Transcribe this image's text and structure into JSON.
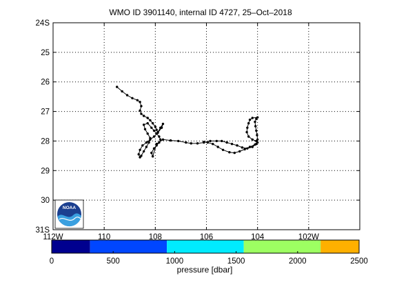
{
  "chart_data": {
    "type": "scatter",
    "title": "WMO ID 3901140, internal ID 4727, 25–Oct–2018",
    "xlim": [
      -112,
      -100
    ],
    "ylim": [
      -31,
      -24
    ],
    "grid": true,
    "x_tick_labels": [
      {
        "value": -112,
        "label": "112W"
      },
      {
        "value": -110,
        "label": "110"
      },
      {
        "value": -108,
        "label": "108"
      },
      {
        "value": -106,
        "label": "106"
      },
      {
        "value": -104,
        "label": "104"
      },
      {
        "value": -102,
        "label": "102W"
      }
    ],
    "y_tick_labels": [
      {
        "value": -24,
        "label": "24S"
      },
      {
        "value": -25,
        "label": "25"
      },
      {
        "value": -26,
        "label": "26"
      },
      {
        "value": -27,
        "label": "27"
      },
      {
        "value": -28,
        "label": "28"
      },
      {
        "value": -29,
        "label": "29"
      },
      {
        "value": -30,
        "label": "30"
      },
      {
        "value": -31,
        "label": "31S"
      }
    ],
    "series": [
      {
        "lon": [
          -109.5,
          -109.3,
          -109.1,
          -108.9,
          -108.7,
          -108.6,
          -108.55,
          -108.6,
          -108.55,
          -108.45,
          -108.3,
          -108.2,
          -108.1,
          -108.0,
          -107.95,
          -107.9,
          -107.8,
          -107.7,
          -107.75,
          -107.9,
          -108.05,
          -108.2,
          -108.35,
          -108.5,
          -108.6,
          -108.65,
          -108.6,
          -108.55,
          -108.45,
          -108.35,
          -108.25,
          -108.2,
          -108.3,
          -108.4,
          -108.45,
          -108.3,
          -108.15,
          -108.05,
          -107.95,
          -107.85,
          -107.8,
          -107.85,
          -107.95,
          -108.05,
          -108.15,
          -108.1,
          -107.95,
          -107.7,
          -107.4,
          -107.1,
          -106.8,
          -106.6,
          -106.35,
          -106.1,
          -105.85,
          -105.6,
          -105.4,
          -105.2,
          -105.0,
          -104.8,
          -104.6,
          -104.4,
          -104.2,
          -104.05,
          -104.0,
          -104.02,
          -104.05,
          -104.08,
          -104.1,
          -104.05,
          -104.0,
          -104.2,
          -104.3,
          -104.35,
          -104.4,
          -104.42,
          -104.35,
          -104.2,
          -104.05,
          -104.0,
          -104.1,
          -104.3,
          -104.5,
          -104.7,
          -104.9,
          -105.1,
          -105.35,
          -105.55,
          -105.75,
          -105.95,
          -106.1
        ],
        "lat": [
          -26.17,
          -26.32,
          -26.45,
          -26.55,
          -26.62,
          -26.68,
          -26.82,
          -26.97,
          -27.08,
          -27.15,
          -27.22,
          -27.3,
          -27.4,
          -27.52,
          -27.62,
          -27.7,
          -27.55,
          -27.42,
          -27.55,
          -27.72,
          -27.85,
          -27.95,
          -28.05,
          -28.15,
          -28.3,
          -28.45,
          -28.55,
          -28.5,
          -28.35,
          -28.2,
          -28.05,
          -27.9,
          -27.75,
          -27.6,
          -27.45,
          -27.4,
          -27.55,
          -27.65,
          -27.75,
          -27.85,
          -27.95,
          -28.05,
          -28.15,
          -28.25,
          -28.4,
          -28.52,
          -28.1,
          -27.95,
          -27.98,
          -28.0,
          -28.05,
          -28.08,
          -28.08,
          -28.05,
          -28.0,
          -28.0,
          -28.0,
          -28.05,
          -28.1,
          -28.15,
          -28.22,
          -28.25,
          -28.2,
          -28.1,
          -27.95,
          -27.8,
          -27.65,
          -27.5,
          -27.35,
          -27.25,
          -27.2,
          -27.22,
          -27.28,
          -27.4,
          -27.55,
          -27.7,
          -27.85,
          -27.95,
          -28.0,
          -28.05,
          -28.12,
          -28.2,
          -28.28,
          -28.35,
          -28.4,
          -28.38,
          -28.3,
          -28.2,
          -28.1,
          -28.05,
          -28.03
        ]
      }
    ],
    "colorbar": {
      "label": "pressure [dbar]",
      "range": [
        0,
        2500
      ],
      "tick_labels": [
        "0",
        "500",
        "1000",
        "1500",
        "2000",
        "2500"
      ],
      "bands": [
        {
          "from": 0,
          "to": 312,
          "color": "#00008f"
        },
        {
          "from": 312,
          "to": 937,
          "color": "#0046ff"
        },
        {
          "from": 937,
          "to": 1562,
          "color": "#00ebff"
        },
        {
          "from": 1562,
          "to": 2187,
          "color": "#9dff62"
        },
        {
          "from": 2187,
          "to": 2500,
          "color": "#ffb000"
        }
      ]
    }
  },
  "logo": {
    "text": "NOAA",
    "colors": {
      "sky": "#1b3f8f",
      "wave": "#3aa0e0"
    }
  }
}
